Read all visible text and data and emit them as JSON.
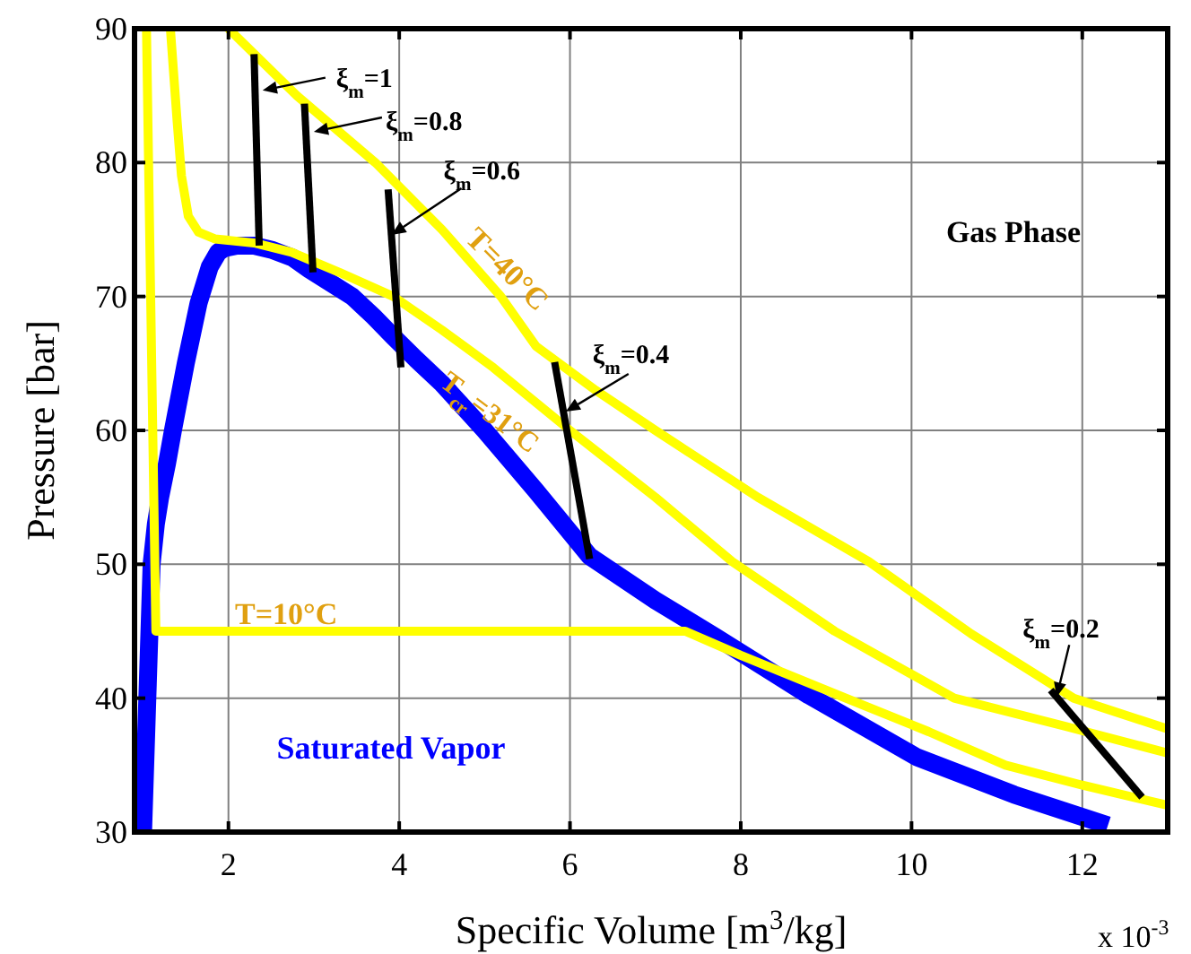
{
  "chart_data": {
    "type": "line",
    "xlabel": "Specific Volume [m$^{3}$/kg]",
    "ylabel": "Pressure [bar]",
    "xlim": [
      0.9,
      13
    ],
    "ylim": [
      30,
      90
    ],
    "xticks": [
      2,
      4,
      6,
      8,
      10,
      12
    ],
    "yticks": [
      30,
      40,
      50,
      60,
      70,
      80,
      90
    ],
    "grid": true,
    "series": [
      {
        "color": "#0000ff",
        "x": [
          1.0,
          1.05,
          1.1,
          1.15,
          1.2,
          1.28,
          1.35,
          1.5,
          1.65,
          1.78,
          1.88,
          1.95,
          2.1,
          2.3,
          2.5,
          2.75,
          2.95,
          3.2,
          3.45,
          3.7,
          3.93,
          4.2,
          4.5,
          5.0,
          5.6,
          6.23,
          7.0,
          7.7,
          8.8,
          10.06,
          11.2,
          12.3
        ],
        "values": [
          30,
          40,
          50,
          53,
          55,
          57.5,
          60,
          65,
          69.5,
          72.2,
          73.3,
          73.6,
          73.8,
          73.8,
          73.5,
          72.9,
          72,
          71,
          70,
          68.5,
          67,
          65.3,
          63.5,
          60,
          55.5,
          50.6,
          47.3,
          44.6,
          40.2,
          35.6,
          32.8,
          30.5
        ]
      },
      {
        "name": "T=10°C",
        "color": "#ffff00",
        "x": [
          1.04,
          1.15,
          7.35,
          8.0,
          9.23,
          10.2,
          11.1,
          12.0,
          13
        ],
        "values": [
          90,
          45,
          45,
          43.2,
          40,
          37.5,
          35,
          33.5,
          32
        ]
      },
      {
        "name": "T$_{cr}$=31°C",
        "color": "#ffff00",
        "x": [
          1.32,
          1.4,
          1.45,
          1.53,
          1.65,
          1.84,
          2.3,
          2.74,
          3.3,
          3.93,
          4.5,
          5.1,
          6.0,
          7.0,
          7.9,
          9.1,
          10.5,
          11.8,
          13
        ],
        "values": [
          90,
          83,
          79,
          76,
          74.8,
          74.3,
          74,
          73.3,
          71.8,
          70,
          67.5,
          64.7,
          60,
          55,
          50.2,
          45,
          40,
          37.9,
          35.9
        ]
      },
      {
        "name": "T=40°C",
        "color": "#ffff00",
        "x": [
          2.0,
          2.8,
          3.72,
          4.5,
          5.19,
          5.6,
          6.3,
          7.0,
          8.2,
          9.5,
          10.7,
          11.9,
          13
        ],
        "values": [
          90,
          85,
          80,
          75,
          70,
          66.3,
          63,
          60,
          55,
          50.2,
          44.8,
          40,
          37.7
        ]
      },
      {
        "color": "#000000",
        "x": [
          2.3,
          2.36
        ],
        "values": [
          88.1,
          73.8
        ]
      },
      {
        "color": "#000000",
        "x": [
          2.89,
          2.99
        ],
        "values": [
          84.4,
          71.8
        ]
      },
      {
        "color": "#000000",
        "x": [
          3.87,
          4.02
        ],
        "values": [
          78.0,
          64.7
        ]
      },
      {
        "color": "#000000",
        "x": [
          5.82,
          6.23
        ],
        "values": [
          65.1,
          50.4
        ]
      },
      {
        "color": "#000000",
        "x": [
          11.63,
          12.7
        ],
        "values": [
          40.6,
          32.6
        ]
      }
    ],
    "annotations": [
      "Gas Phase",
      "Saturated Vapor",
      "x 10$^{-3}$",
      {
        "text": "ξ$_{m}$=1",
        "x": 2.4,
        "y": 85.4
      },
      {
        "text": "ξ$_{m}$=0.8",
        "x": 3.0,
        "y": 82.3
      },
      {
        "text": "ξ$_{m}$=0.6",
        "x": 3.91,
        "y": 74.6
      },
      {
        "text": "ξ$_{m}$=0.4",
        "x": 5.95,
        "y": 61.4
      },
      {
        "text": "ξ$_{m}$=0.2",
        "x": 11.7,
        "y": 40.1
      }
    ]
  }
}
